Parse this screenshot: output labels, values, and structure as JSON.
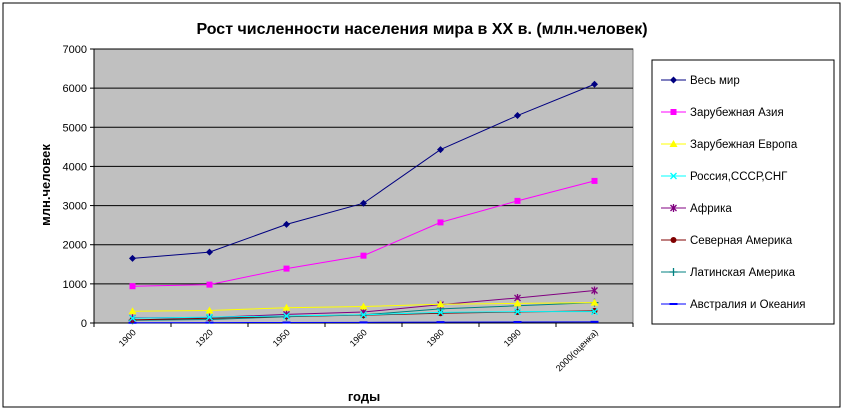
{
  "chart_data": {
    "type": "line",
    "title": "Рост численности населения мира в XX в. (млн.человек)",
    "xlabel": "годы",
    "ylabel": "млн.человек",
    "ylim": [
      0,
      7000
    ],
    "yticks": [
      0,
      1000,
      2000,
      3000,
      4000,
      5000,
      6000,
      7000
    ],
    "grid": true,
    "legend_position": "right",
    "categories": [
      "1900",
      "1920",
      "1950",
      "1960",
      "1980",
      "1990",
      "2000(оценка)"
    ],
    "series": [
      {
        "name": "Весь мир",
        "color": "#000080",
        "marker": "diamond",
        "values": [
          1650,
          1810,
          2520,
          3060,
          4430,
          5300,
          6100
        ]
      },
      {
        "name": "Зарубежная Азия",
        "color": "#ff00ff",
        "marker": "square",
        "values": [
          940,
          980,
          1390,
          1720,
          2570,
          3120,
          3630
        ]
      },
      {
        "name": "Зарубежная Европа",
        "color": "#ffff00",
        "marker": "triangle",
        "values": [
          300,
          320,
          390,
          420,
          480,
          500,
          520
        ]
      },
      {
        "name": "Россия,СССР,СНГ",
        "color": "#00ffff",
        "marker": "x",
        "values": [
          120,
          150,
          180,
          210,
          270,
          290,
          290
        ]
      },
      {
        "name": "Африка",
        "color": "#800080",
        "marker": "star",
        "values": [
          130,
          140,
          220,
          280,
          470,
          640,
          830
        ]
      },
      {
        "name": "Северная Америка",
        "color": "#800000",
        "marker": "circle",
        "values": [
          80,
          120,
          170,
          200,
          250,
          280,
          310
        ]
      },
      {
        "name": "Латинская Америка",
        "color": "#008080",
        "marker": "plus",
        "values": [
          70,
          90,
          160,
          210,
          360,
          440,
          520
        ]
      },
      {
        "name": "Австралия и Океания",
        "color": "#0000ff",
        "marker": "dash",
        "values": [
          6,
          9,
          13,
          16,
          23,
          26,
          30
        ]
      }
    ]
  }
}
